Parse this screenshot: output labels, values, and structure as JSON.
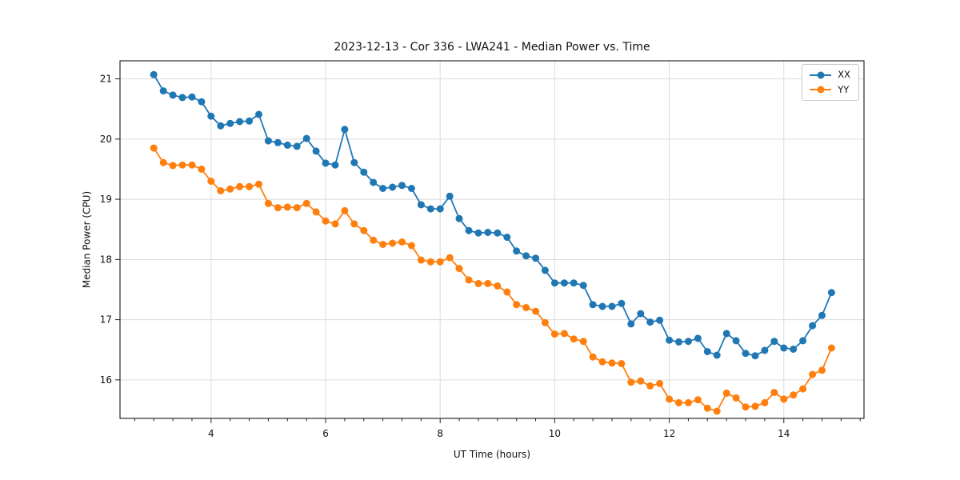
{
  "chart_data": {
    "type": "line",
    "title": "2023-12-13 - Cor 336 - LWA241 - Median Power vs. Time",
    "xlabel": "UT Time (hours)",
    "ylabel": "Median Power (CPU)",
    "xlim": [
      2.41,
      15.4
    ],
    "ylim": [
      15.36,
      21.3
    ],
    "xticks": [
      4,
      6,
      8,
      10,
      12,
      14
    ],
    "yticks": [
      16,
      17,
      18,
      19,
      20,
      21
    ],
    "xtick_minor_step": 0.33333,
    "grid": true,
    "legend_position": "upper right",
    "marker": "o",
    "x": [
      3.0,
      3.167,
      3.333,
      3.5,
      3.667,
      3.833,
      4.0,
      4.167,
      4.333,
      4.5,
      4.667,
      4.833,
      5.0,
      5.167,
      5.333,
      5.5,
      5.667,
      5.833,
      6.0,
      6.167,
      6.333,
      6.5,
      6.667,
      6.833,
      7.0,
      7.167,
      7.333,
      7.5,
      7.667,
      7.833,
      8.0,
      8.167,
      8.333,
      8.5,
      8.667,
      8.833,
      9.0,
      9.167,
      9.333,
      9.5,
      9.667,
      9.833,
      10.0,
      10.167,
      10.333,
      10.5,
      10.667,
      10.833,
      11.0,
      11.167,
      11.333,
      11.5,
      11.667,
      11.833,
      12.0,
      12.167,
      12.333,
      12.5,
      12.667,
      12.833,
      13.0,
      13.167,
      13.333,
      13.5,
      13.667,
      13.833,
      14.0,
      14.167,
      14.333,
      14.5,
      14.667,
      14.833
    ],
    "series": [
      {
        "name": "XX",
        "color": "#1f77b4",
        "values": [
          21.07,
          20.8,
          20.73,
          20.69,
          20.7,
          20.62,
          20.38,
          20.22,
          20.26,
          20.29,
          20.3,
          20.41,
          19.97,
          19.94,
          19.9,
          19.88,
          20.01,
          19.8,
          19.6,
          19.57,
          20.16,
          19.61,
          19.45,
          19.28,
          19.18,
          19.2,
          19.23,
          19.18,
          18.91,
          18.84,
          18.84,
          19.05,
          18.68,
          18.48,
          18.44,
          18.45,
          18.44,
          18.37,
          18.14,
          18.06,
          18.02,
          17.82,
          17.61,
          17.61,
          17.61,
          17.57,
          17.25,
          17.22,
          17.22,
          17.27,
          16.93,
          17.1,
          16.96,
          16.99,
          16.66,
          16.63,
          16.64,
          16.69,
          16.47,
          16.41,
          16.77,
          16.65,
          16.44,
          16.4,
          16.49,
          16.64,
          16.53,
          16.51,
          16.65,
          16.9,
          17.07,
          17.45
        ]
      },
      {
        "name": "YY",
        "color": "#ff7f0e",
        "values": [
          19.85,
          19.61,
          19.56,
          19.57,
          19.57,
          19.5,
          19.3,
          19.14,
          19.17,
          19.21,
          19.21,
          19.25,
          18.93,
          18.86,
          18.87,
          18.86,
          18.93,
          18.79,
          18.64,
          18.59,
          18.81,
          18.59,
          18.48,
          18.32,
          18.25,
          18.27,
          18.29,
          18.23,
          17.99,
          17.96,
          17.96,
          18.03,
          17.85,
          17.66,
          17.6,
          17.6,
          17.56,
          17.46,
          17.25,
          17.2,
          17.14,
          16.95,
          16.76,
          16.77,
          16.68,
          16.64,
          16.38,
          16.3,
          16.28,
          16.27,
          15.96,
          15.98,
          15.9,
          15.94,
          15.68,
          15.62,
          15.62,
          15.67,
          15.53,
          15.48,
          15.78,
          15.7,
          15.55,
          15.56,
          15.62,
          15.79,
          15.68,
          15.75,
          15.85,
          16.09,
          16.16,
          16.53
        ]
      }
    ]
  }
}
